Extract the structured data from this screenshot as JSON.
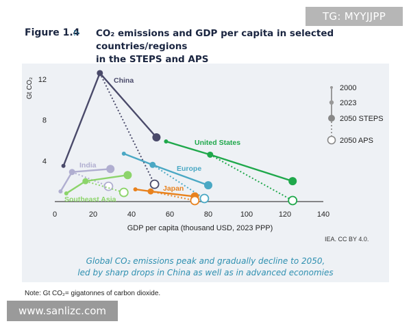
{
  "watermarks": {
    "top": "TG: MYYJJPP",
    "bottom": "www.sanlizc.com"
  },
  "figure": {
    "label": "Figure 1.4",
    "title_line1": "CO₂ emissions and GDP per capita in selected countries/regions",
    "title_line2": "in the STEPS and APS"
  },
  "source": "IEA. CC BY 4.0.",
  "caption": {
    "line1": "Global CO₂ emissions peak and gradually decline to 2050,",
    "line2": "led by sharp drops in China as well as in advanced economies"
  },
  "note": "Note: Gt CO₂= gigatonnes of carbon dioxide.",
  "chart_data": {
    "type": "scatter",
    "xlabel": "GDP per capita (thousand USD, 2023 PPP)",
    "ylabel": "Gt CO₂",
    "xlim": [
      0,
      140
    ],
    "ylim": [
      0,
      13
    ],
    "xticks": [
      0,
      20,
      40,
      60,
      80,
      100,
      120,
      140
    ],
    "yticks": [
      4,
      8,
      12
    ],
    "grid": false,
    "legend_position": "right",
    "legend": {
      "y2000": "2000",
      "y2023": "2023",
      "steps": "2050 STEPS",
      "aps": "2050 APS"
    },
    "series": [
      {
        "name": "China",
        "color": "#4a4a6a",
        "y2000": [
          4.5,
          3.5
        ],
        "y2023": [
          23.5,
          12.6
        ],
        "steps": [
          53,
          6.3
        ],
        "aps": [
          52,
          1.7
        ]
      },
      {
        "name": "United States",
        "color": "#1fa84b",
        "y2000": [
          58,
          5.9
        ],
        "y2023": [
          81,
          4.6
        ],
        "steps": [
          124,
          2.0
        ],
        "aps": [
          124,
          0.1
        ]
      },
      {
        "name": "Europe",
        "color": "#4aa8c4",
        "y2000": [
          36,
          4.7
        ],
        "y2023": [
          51,
          3.6
        ],
        "steps": [
          80,
          1.6
        ],
        "aps": [
          78,
          0.3
        ]
      },
      {
        "name": "India",
        "color": "#b0aed0",
        "y2000": [
          3,
          1.0
        ],
        "y2023": [
          9,
          2.9
        ],
        "steps": [
          29,
          3.2
        ],
        "aps": [
          28,
          1.5
        ]
      },
      {
        "name": "Southeast Asia",
        "color": "#8cd46a",
        "y2000": [
          6,
          0.8
        ],
        "y2023": [
          16,
          2.0
        ],
        "steps": [
          38,
          2.6
        ],
        "aps": [
          36,
          0.9
        ]
      },
      {
        "name": "Japan",
        "color": "#e8821e",
        "y2000": [
          42,
          1.2
        ],
        "y2023": [
          50,
          1.0
        ],
        "steps": [
          73,
          0.5
        ],
        "aps": [
          73,
          0.1
        ]
      }
    ]
  }
}
